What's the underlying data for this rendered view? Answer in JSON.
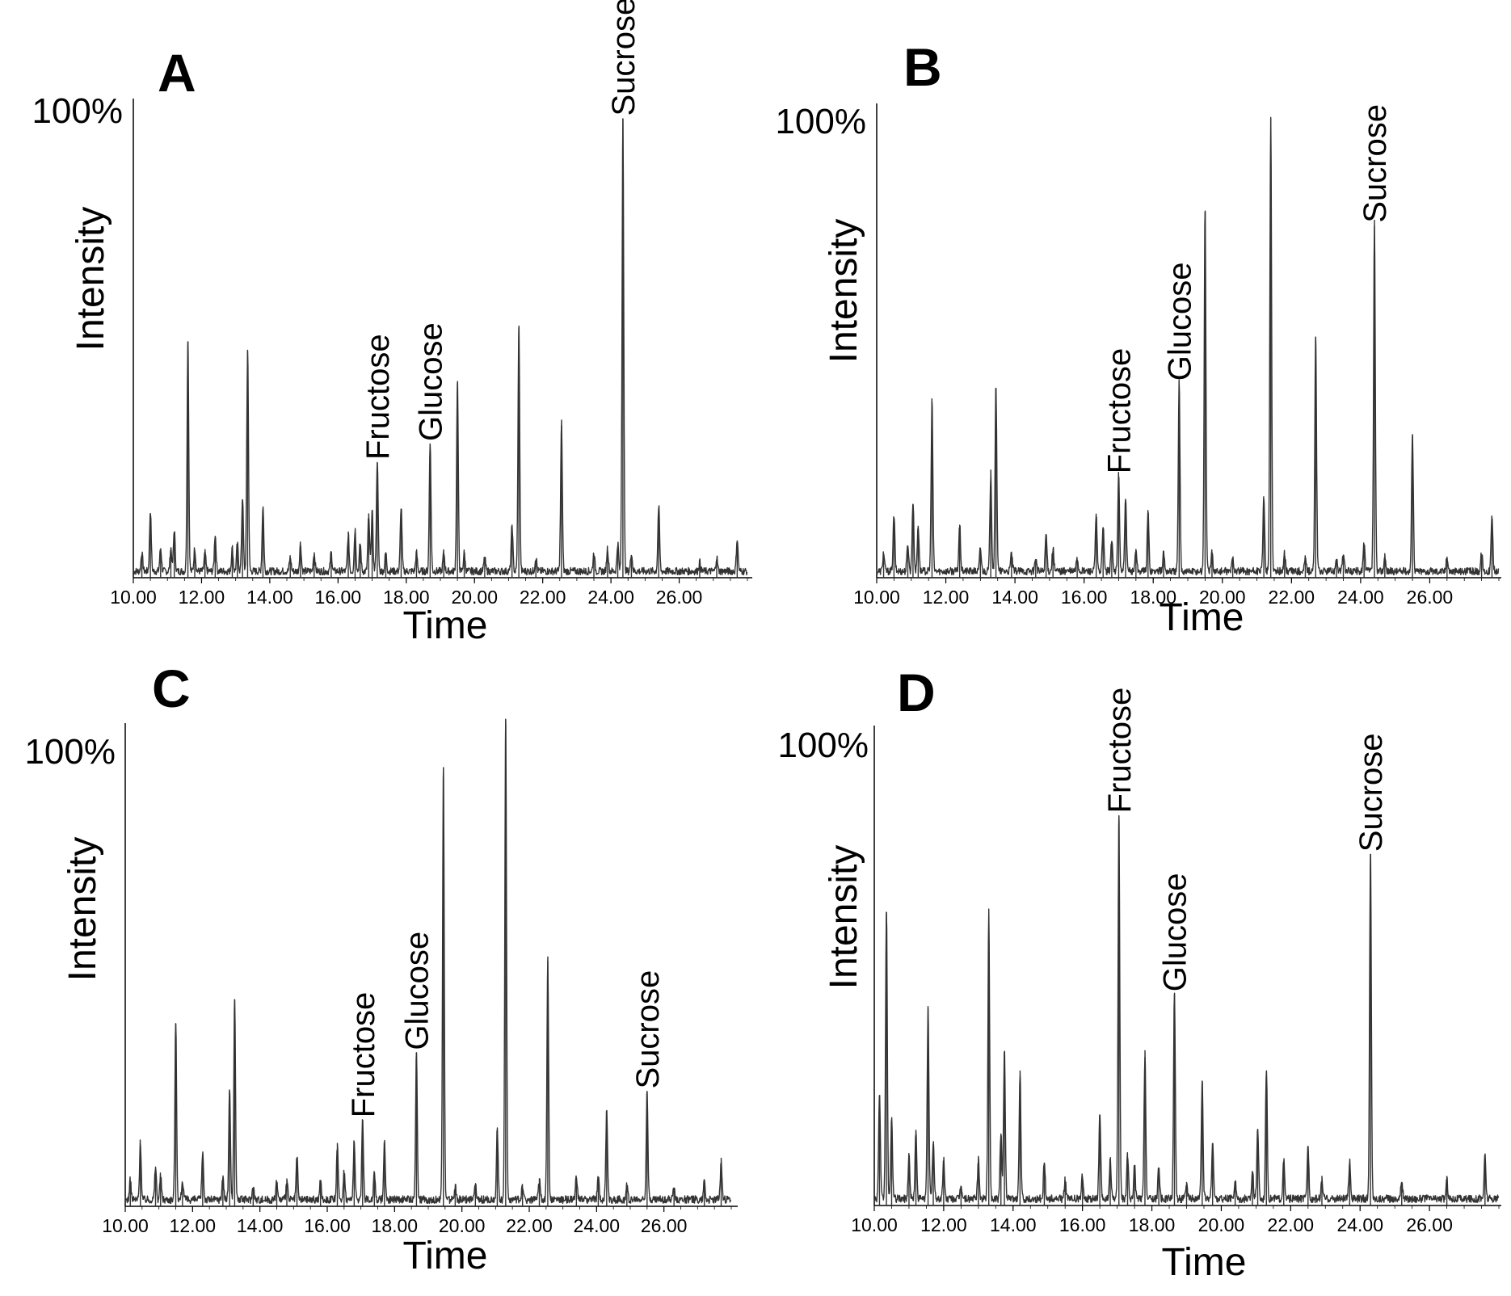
{
  "chart_data": [
    {
      "type": "line",
      "panel": "A",
      "title": "",
      "xlabel": "Time",
      "ylabel": "Intensity",
      "ymax_label": "100%",
      "xlim": [
        10.0,
        28.0
      ],
      "ylim": [
        0,
        100
      ],
      "xticks": [
        "10.00",
        "12.00",
        "14.00",
        "16.00",
        "18.00",
        "20.00",
        "22.00",
        "24.00",
        "26.00"
      ],
      "peaks": [
        {
          "x": 10.25,
          "y": 4
        },
        {
          "x": 10.5,
          "y": 13
        },
        {
          "x": 10.8,
          "y": 5
        },
        {
          "x": 11.1,
          "y": 5
        },
        {
          "x": 11.2,
          "y": 9
        },
        {
          "x": 11.6,
          "y": 50
        },
        {
          "x": 11.8,
          "y": 5
        },
        {
          "x": 12.1,
          "y": 4
        },
        {
          "x": 12.4,
          "y": 8
        },
        {
          "x": 12.9,
          "y": 5
        },
        {
          "x": 13.05,
          "y": 6
        },
        {
          "x": 13.2,
          "y": 16
        },
        {
          "x": 13.35,
          "y": 48
        },
        {
          "x": 13.8,
          "y": 14
        },
        {
          "x": 14.6,
          "y": 3
        },
        {
          "x": 14.9,
          "y": 6
        },
        {
          "x": 15.3,
          "y": 4
        },
        {
          "x": 15.8,
          "y": 4
        },
        {
          "x": 16.3,
          "y": 8
        },
        {
          "x": 16.5,
          "y": 9
        },
        {
          "x": 16.65,
          "y": 6
        },
        {
          "x": 16.9,
          "y": 12
        },
        {
          "x": 17.0,
          "y": 13
        },
        {
          "x": 17.15,
          "y": 24
        },
        {
          "x": 17.4,
          "y": 4
        },
        {
          "x": 17.85,
          "y": 14
        },
        {
          "x": 18.3,
          "y": 4
        },
        {
          "x": 18.7,
          "y": 28
        },
        {
          "x": 19.1,
          "y": 4
        },
        {
          "x": 19.5,
          "y": 41
        },
        {
          "x": 19.7,
          "y": 4
        },
        {
          "x": 20.3,
          "y": 3
        },
        {
          "x": 21.1,
          "y": 10
        },
        {
          "x": 21.3,
          "y": 53
        },
        {
          "x": 21.8,
          "y": 3
        },
        {
          "x": 22.55,
          "y": 32
        },
        {
          "x": 23.5,
          "y": 4
        },
        {
          "x": 23.9,
          "y": 5
        },
        {
          "x": 24.2,
          "y": 6
        },
        {
          "x": 24.35,
          "y": 98
        },
        {
          "x": 24.6,
          "y": 4
        },
        {
          "x": 25.4,
          "y": 14
        },
        {
          "x": 26.6,
          "y": 2
        },
        {
          "x": 27.1,
          "y": 3
        },
        {
          "x": 27.7,
          "y": 7
        }
      ],
      "annotations": [
        {
          "label": "Fructose",
          "x": 17.15,
          "y": 24
        },
        {
          "label": "Glucose",
          "x": 18.7,
          "y": 28
        },
        {
          "label": "Sucrose",
          "x": 24.35,
          "y": 98
        }
      ]
    },
    {
      "type": "line",
      "panel": "B",
      "title": "",
      "xlabel": "Time",
      "ylabel": "Intensity",
      "ymax_label": "100%",
      "xlim": [
        10.0,
        28.0
      ],
      "ylim": [
        0,
        100
      ],
      "xticks": [
        "10.00",
        "12.00",
        "14.00",
        "16.00",
        "18.00",
        "20.00",
        "22.00",
        "24.00",
        "26.00"
      ],
      "peaks": [
        {
          "x": 10.2,
          "y": 4
        },
        {
          "x": 10.5,
          "y": 12
        },
        {
          "x": 10.9,
          "y": 6
        },
        {
          "x": 11.05,
          "y": 15
        },
        {
          "x": 11.2,
          "y": 10
        },
        {
          "x": 11.6,
          "y": 37
        },
        {
          "x": 12.4,
          "y": 10
        },
        {
          "x": 13.0,
          "y": 5
        },
        {
          "x": 13.3,
          "y": 21
        },
        {
          "x": 13.45,
          "y": 40
        },
        {
          "x": 13.9,
          "y": 4
        },
        {
          "x": 14.6,
          "y": 3
        },
        {
          "x": 14.9,
          "y": 8
        },
        {
          "x": 15.1,
          "y": 5
        },
        {
          "x": 15.8,
          "y": 3
        },
        {
          "x": 16.35,
          "y": 12
        },
        {
          "x": 16.55,
          "y": 10
        },
        {
          "x": 16.8,
          "y": 7
        },
        {
          "x": 17.0,
          "y": 21
        },
        {
          "x": 17.2,
          "y": 16
        },
        {
          "x": 17.5,
          "y": 5
        },
        {
          "x": 17.85,
          "y": 13
        },
        {
          "x": 18.3,
          "y": 4
        },
        {
          "x": 18.75,
          "y": 41
        },
        {
          "x": 19.5,
          "y": 78
        },
        {
          "x": 19.7,
          "y": 4
        },
        {
          "x": 20.3,
          "y": 3
        },
        {
          "x": 21.2,
          "y": 16
        },
        {
          "x": 21.4,
          "y": 98
        },
        {
          "x": 21.8,
          "y": 4
        },
        {
          "x": 22.4,
          "y": 3
        },
        {
          "x": 22.7,
          "y": 51
        },
        {
          "x": 23.3,
          "y": 3
        },
        {
          "x": 23.5,
          "y": 4
        },
        {
          "x": 24.1,
          "y": 6
        },
        {
          "x": 24.4,
          "y": 75
        },
        {
          "x": 24.7,
          "y": 3
        },
        {
          "x": 25.5,
          "y": 30
        },
        {
          "x": 26.5,
          "y": 3
        },
        {
          "x": 27.5,
          "y": 4
        },
        {
          "x": 27.8,
          "y": 12
        }
      ],
      "annotations": [
        {
          "label": "Fructose",
          "x": 17.0,
          "y": 21
        },
        {
          "label": "Glucose",
          "x": 18.75,
          "y": 41
        },
        {
          "label": "Sucrose",
          "x": 24.4,
          "y": 75
        }
      ]
    },
    {
      "type": "line",
      "panel": "C",
      "title": "",
      "xlabel": "Time",
      "ylabel": "Intensity",
      "ymax_label": "100%",
      "xlim": [
        10.0,
        28.0
      ],
      "ylim": [
        0,
        100
      ],
      "xticks": [
        "10.00",
        "12.00",
        "14.00",
        "16.00",
        "18.00",
        "20.00",
        "22.00",
        "24.00",
        "26.00"
      ],
      "peaks": [
        {
          "x": 10.15,
          "y": 4
        },
        {
          "x": 10.45,
          "y": 12
        },
        {
          "x": 10.9,
          "y": 7
        },
        {
          "x": 11.05,
          "y": 5
        },
        {
          "x": 11.5,
          "y": 37
        },
        {
          "x": 11.7,
          "y": 4
        },
        {
          "x": 12.3,
          "y": 10
        },
        {
          "x": 12.9,
          "y": 5
        },
        {
          "x": 13.1,
          "y": 23
        },
        {
          "x": 13.25,
          "y": 42
        },
        {
          "x": 13.8,
          "y": 3
        },
        {
          "x": 14.5,
          "y": 4
        },
        {
          "x": 14.8,
          "y": 4
        },
        {
          "x": 15.1,
          "y": 9
        },
        {
          "x": 15.8,
          "y": 4
        },
        {
          "x": 16.3,
          "y": 11
        },
        {
          "x": 16.5,
          "y": 6
        },
        {
          "x": 16.8,
          "y": 12
        },
        {
          "x": 17.05,
          "y": 17
        },
        {
          "x": 17.4,
          "y": 6
        },
        {
          "x": 17.7,
          "y": 12
        },
        {
          "x": 18.65,
          "y": 31
        },
        {
          "x": 19.45,
          "y": 90
        },
        {
          "x": 19.8,
          "y": 3
        },
        {
          "x": 20.4,
          "y": 3
        },
        {
          "x": 21.05,
          "y": 15
        },
        {
          "x": 21.3,
          "y": 100
        },
        {
          "x": 21.8,
          "y": 3
        },
        {
          "x": 22.3,
          "y": 4
        },
        {
          "x": 22.55,
          "y": 50
        },
        {
          "x": 23.4,
          "y": 5
        },
        {
          "x": 24.05,
          "y": 5
        },
        {
          "x": 24.3,
          "y": 19
        },
        {
          "x": 24.9,
          "y": 3
        },
        {
          "x": 25.5,
          "y": 23
        },
        {
          "x": 26.3,
          "y": 3
        },
        {
          "x": 27.2,
          "y": 4
        },
        {
          "x": 27.7,
          "y": 8
        }
      ],
      "annotations": [
        {
          "label": "Fructose",
          "x": 17.05,
          "y": 17
        },
        {
          "label": "Glucose",
          "x": 18.65,
          "y": 31
        },
        {
          "label": "Sucrose",
          "x": 25.5,
          "y": 23
        }
      ]
    },
    {
      "type": "line",
      "panel": "D",
      "title": "",
      "xlabel": "Time",
      "ylabel": "Intensity",
      "ymax_label": "100%",
      "xlim": [
        10.0,
        28.0
      ],
      "ylim": [
        0,
        100
      ],
      "xticks": [
        "10.00",
        "12.00",
        "14.00",
        "16.00",
        "18.00",
        "20.00",
        "22.00",
        "24.00",
        "26.00"
      ],
      "peaks": [
        {
          "x": 10.15,
          "y": 22
        },
        {
          "x": 10.35,
          "y": 60
        },
        {
          "x": 10.5,
          "y": 17
        },
        {
          "x": 11.0,
          "y": 9
        },
        {
          "x": 11.2,
          "y": 14
        },
        {
          "x": 11.55,
          "y": 40
        },
        {
          "x": 11.7,
          "y": 12
        },
        {
          "x": 12.0,
          "y": 8
        },
        {
          "x": 12.5,
          "y": 3
        },
        {
          "x": 13.0,
          "y": 8
        },
        {
          "x": 13.3,
          "y": 60
        },
        {
          "x": 13.65,
          "y": 14
        },
        {
          "x": 13.75,
          "y": 31
        },
        {
          "x": 14.2,
          "y": 26
        },
        {
          "x": 14.9,
          "y": 8
        },
        {
          "x": 15.5,
          "y": 4
        },
        {
          "x": 16.0,
          "y": 5
        },
        {
          "x": 16.5,
          "y": 18
        },
        {
          "x": 16.8,
          "y": 8
        },
        {
          "x": 17.05,
          "y": 80
        },
        {
          "x": 17.3,
          "y": 9
        },
        {
          "x": 17.5,
          "y": 7
        },
        {
          "x": 17.8,
          "y": 30
        },
        {
          "x": 18.2,
          "y": 7
        },
        {
          "x": 18.65,
          "y": 43
        },
        {
          "x": 19.0,
          "y": 3
        },
        {
          "x": 19.45,
          "y": 25
        },
        {
          "x": 19.75,
          "y": 12
        },
        {
          "x": 20.4,
          "y": 4
        },
        {
          "x": 20.9,
          "y": 6
        },
        {
          "x": 21.05,
          "y": 15
        },
        {
          "x": 21.3,
          "y": 27
        },
        {
          "x": 21.8,
          "y": 8
        },
        {
          "x": 22.5,
          "y": 11
        },
        {
          "x": 22.9,
          "y": 4
        },
        {
          "x": 23.7,
          "y": 8
        },
        {
          "x": 24.3,
          "y": 72
        },
        {
          "x": 25.2,
          "y": 4
        },
        {
          "x": 26.5,
          "y": 4
        },
        {
          "x": 27.6,
          "y": 9
        }
      ],
      "annotations": [
        {
          "label": "Fructose",
          "x": 17.05,
          "y": 80
        },
        {
          "label": "Glucose",
          "x": 18.65,
          "y": 43
        },
        {
          "label": "Sucrose",
          "x": 24.3,
          "y": 72
        }
      ]
    }
  ]
}
